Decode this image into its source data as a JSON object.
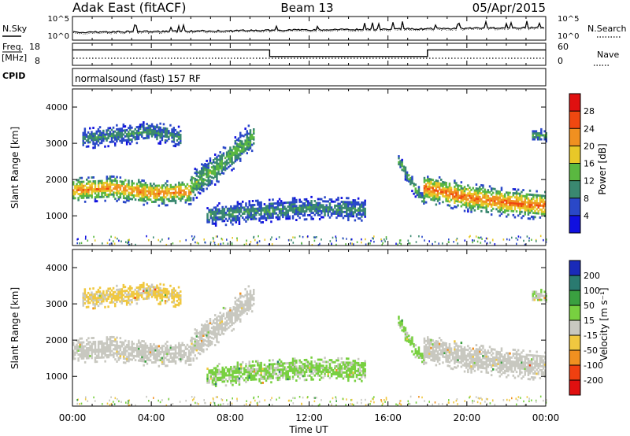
{
  "header": {
    "station": "Adak East (fitACF)",
    "beam": "Beam 13",
    "date": "05/Apr/2015"
  },
  "top_panel": {
    "left_label": "N.Sky",
    "left_ticks": [
      "10^5",
      "10^0"
    ],
    "right_label": "N.Search",
    "right_ticks": [
      "10^5",
      "10^0"
    ]
  },
  "freq_panel": {
    "left_label_1": "Freq.",
    "left_label_2": "[MHz]",
    "left_ticks": [
      "18",
      "8"
    ],
    "right_label": "Nave",
    "right_ticks": [
      "60",
      "0"
    ]
  },
  "cpid_panel": {
    "label": "CPID",
    "text": "normalsound (fast) 157 RF"
  },
  "power_panel": {
    "ylabel": "Slant Range [km]",
    "yticks": [
      "1000",
      "2000",
      "3000",
      "4000"
    ],
    "colorbar_label": "Power [dB]",
    "colorbar_ticks": [
      "4",
      "8",
      "12",
      "16",
      "20",
      "24",
      "28"
    ],
    "colorbar_colors": [
      "#1010e0",
      "#2a48c8",
      "#3a8870",
      "#5ab840",
      "#e8c828",
      "#f09020",
      "#f04810",
      "#e01010"
    ]
  },
  "velocity_panel": {
    "ylabel": "Slant Range [km]",
    "yticks": [
      "1000",
      "2000",
      "3000",
      "4000"
    ],
    "colorbar_label": "Velocity [m s⁻¹]",
    "colorbar_ticks": [
      "200",
      "100",
      "50",
      "15",
      "-15",
      "-50",
      "-100",
      "-200"
    ],
    "colorbar_colors": [
      "#1a2ab8",
      "#2a7a70",
      "#3aa040",
      "#78d040",
      "#c8c8c0",
      "#f0c840",
      "#f09020",
      "#f04010",
      "#e01010"
    ]
  },
  "xaxis": {
    "label": "Time UT",
    "ticks": [
      "00:00",
      "04:00",
      "08:00",
      "12:00",
      "16:00",
      "20:00",
      "00:00"
    ]
  },
  "chart_data": [
    {
      "type": "line",
      "title": "Adak East (fitACF) Beam 13 05/Apr/2015",
      "panel": "frequency",
      "xlabel": "Time UT",
      "ylabel": "Freq. [MHz]",
      "x_hours": [
        0,
        10,
        10,
        18,
        18,
        24
      ],
      "freq_mhz": [
        15,
        15,
        12,
        12,
        15,
        15
      ],
      "ylim": [
        8,
        18
      ],
      "nave_ylim": [
        0,
        60
      ]
    },
    {
      "type": "heatmap",
      "panel": "power",
      "xlabel": "Time UT",
      "ylabel": "Slant Range [km]",
      "colorbar": "Power [dB]",
      "xlim_hours": [
        0,
        24
      ],
      "ylim_km": [
        180,
        4500
      ],
      "clim": [
        0,
        32
      ],
      "echo_regions": [
        {
          "t0": 0.0,
          "t1": 6.0,
          "r_center": [
            1700,
            1750,
            1600,
            1650
          ],
          "halfwidth": 250,
          "peak_db": 24
        },
        {
          "t0": 6.0,
          "t1": 9.2,
          "r_center": [
            1800,
            2200,
            2700,
            3200
          ],
          "halfwidth": 300,
          "peak_db": 14
        },
        {
          "t0": 0.5,
          "t1": 5.5,
          "r_center": [
            3100,
            3200,
            3300,
            3150
          ],
          "halfwidth": 200,
          "peak_db": 10
        },
        {
          "t0": 6.8,
          "t1": 14.8,
          "r_center": [
            1000,
            1100,
            1200,
            1150
          ],
          "halfwidth": 220,
          "peak_db": 10
        },
        {
          "t0": 16.5,
          "t1": 17.8,
          "r_center": [
            2500,
            2100,
            1700,
            1400
          ],
          "halfwidth": 150,
          "peak_db": 12
        },
        {
          "t0": 17.8,
          "t1": 24.0,
          "r_center": [
            1750,
            1500,
            1350,
            1250
          ],
          "halfwidth": 280,
          "peak_db": 26
        },
        {
          "t0": 23.3,
          "t1": 24.0,
          "r_center": [
            3200,
            3200,
            3200,
            3200
          ],
          "halfwidth": 120,
          "peak_db": 12
        }
      ]
    },
    {
      "type": "heatmap",
      "panel": "velocity",
      "xlabel": "Time UT",
      "ylabel": "Slant Range [km]",
      "colorbar": "Velocity [m s⁻¹]",
      "xlim_hours": [
        0,
        24
      ],
      "ylim_km": [
        180,
        4500
      ],
      "clim": [
        -250,
        250
      ],
      "echo_regions": [
        {
          "t0": 0.0,
          "t1": 6.0,
          "r_center": [
            1700,
            1750,
            1600,
            1650
          ],
          "halfwidth": 250,
          "velocity": 0
        },
        {
          "t0": 6.0,
          "t1": 9.2,
          "r_center": [
            1800,
            2200,
            2700,
            3200
          ],
          "halfwidth": 300,
          "velocity": 0
        },
        {
          "t0": 0.5,
          "t1": 5.5,
          "r_center": [
            3100,
            3200,
            3300,
            3150
          ],
          "halfwidth": 200,
          "velocity": -40
        },
        {
          "t0": 6.8,
          "t1": 14.8,
          "r_center": [
            1000,
            1100,
            1200,
            1150
          ],
          "halfwidth": 220,
          "velocity": 40
        },
        {
          "t0": 16.5,
          "t1": 17.8,
          "r_center": [
            2500,
            2100,
            1700,
            1400
          ],
          "halfwidth": 150,
          "velocity": 40
        },
        {
          "t0": 17.8,
          "t1": 24.0,
          "r_center": [
            1750,
            1500,
            1350,
            1250
          ],
          "halfwidth": 280,
          "velocity": 0
        },
        {
          "t0": 23.3,
          "t1": 24.0,
          "r_center": [
            3200,
            3200,
            3200,
            3200
          ],
          "halfwidth": 120,
          "velocity": 30
        }
      ]
    }
  ]
}
